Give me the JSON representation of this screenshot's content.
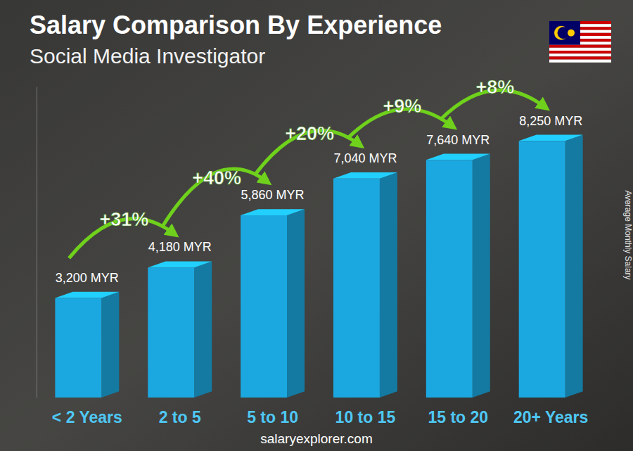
{
  "chart_data": {
    "type": "bar",
    "title": "Salary Comparison By Experience",
    "subtitle": "Social Media Investigator",
    "categories": [
      "< 2 Years",
      "2 to 5",
      "5 to 10",
      "10 to 15",
      "15 to 20",
      "20+ Years"
    ],
    "values": [
      3200,
      4180,
      5860,
      7040,
      7640,
      8250
    ],
    "value_labels": [
      "3,200 MYR",
      "4,180 MYR",
      "5,860 MYR",
      "7,040 MYR",
      "7,640 MYR",
      "8,250 MYR"
    ],
    "annotations": [
      "+31%",
      "+40%",
      "+20%",
      "+9%",
      "+8%"
    ],
    "y_label": "Average Monthly Salary",
    "source": "salaryexplorer.com",
    "color": "#1ba8e0",
    "ylim": [
      0,
      10000
    ],
    "yticks": [],
    "data_labels": true,
    "tick_labels": "x",
    "grid": false
  }
}
